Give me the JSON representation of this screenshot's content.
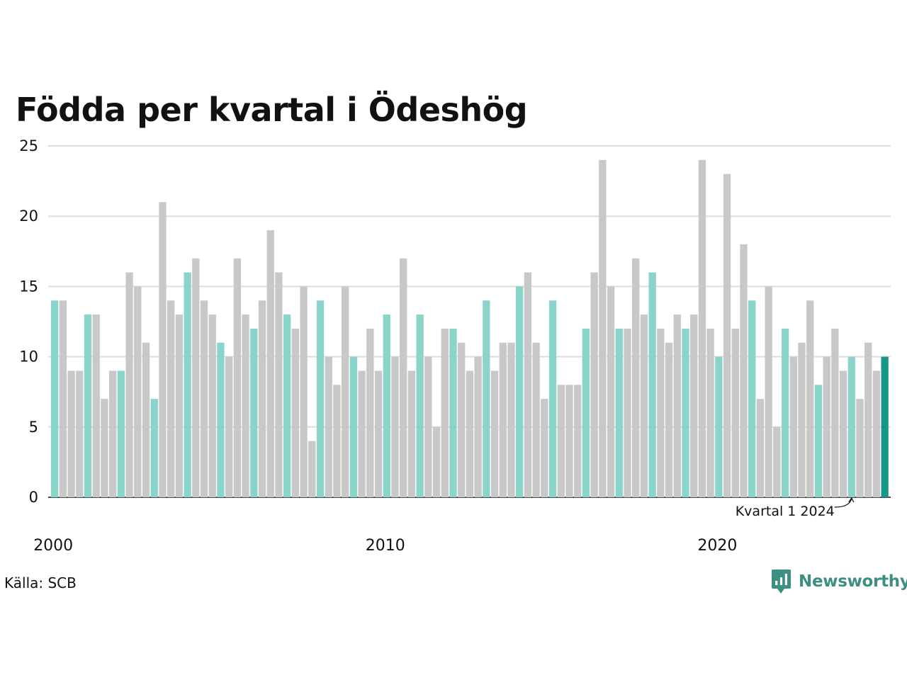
{
  "title": "Födda per kvartal i Ödeshög",
  "source": "Källa: SCB",
  "brand": "Newsworthy",
  "colors": {
    "q1": "#8ad4cc",
    "other": "#c8c8c8",
    "highlight": "#17978a",
    "grid": "#dddddd",
    "brand": "#3d8f84"
  },
  "chart_data": {
    "type": "bar",
    "title": "Födda per kvartal i Ödeshög",
    "xlabel": "",
    "ylabel": "",
    "ylim": [
      0,
      25
    ],
    "yticks": [
      0,
      5,
      10,
      15,
      20,
      25
    ],
    "x_tick_labels": [
      "2000",
      "2010",
      "2020"
    ],
    "grid": "horizontal",
    "start_year": 2000,
    "start_quarter": 1,
    "values": [
      14,
      14,
      9,
      9,
      13,
      13,
      7,
      9,
      9,
      16,
      15,
      11,
      7,
      21,
      14,
      13,
      16,
      17,
      14,
      13,
      11,
      10,
      17,
      13,
      12,
      14,
      19,
      16,
      13,
      12,
      15,
      4,
      14,
      10,
      8,
      15,
      10,
      9,
      12,
      9,
      13,
      10,
      17,
      9,
      13,
      10,
      5,
      12,
      12,
      11,
      9,
      10,
      14,
      9,
      11,
      11,
      15,
      16,
      11,
      7,
      14,
      8,
      8,
      8,
      12,
      16,
      24,
      15,
      12,
      12,
      17,
      13,
      16,
      12,
      11,
      13,
      12,
      13,
      24,
      12,
      10,
      23,
      12,
      18,
      14,
      7,
      15,
      5,
      12,
      10,
      11,
      14,
      8,
      10,
      12,
      9,
      10,
      7,
      11,
      9,
      10
    ],
    "annotation": {
      "label": "Kvartal 1 2024",
      "target_period": "2024 Q1"
    },
    "highlight_period": "2025 Q1"
  }
}
